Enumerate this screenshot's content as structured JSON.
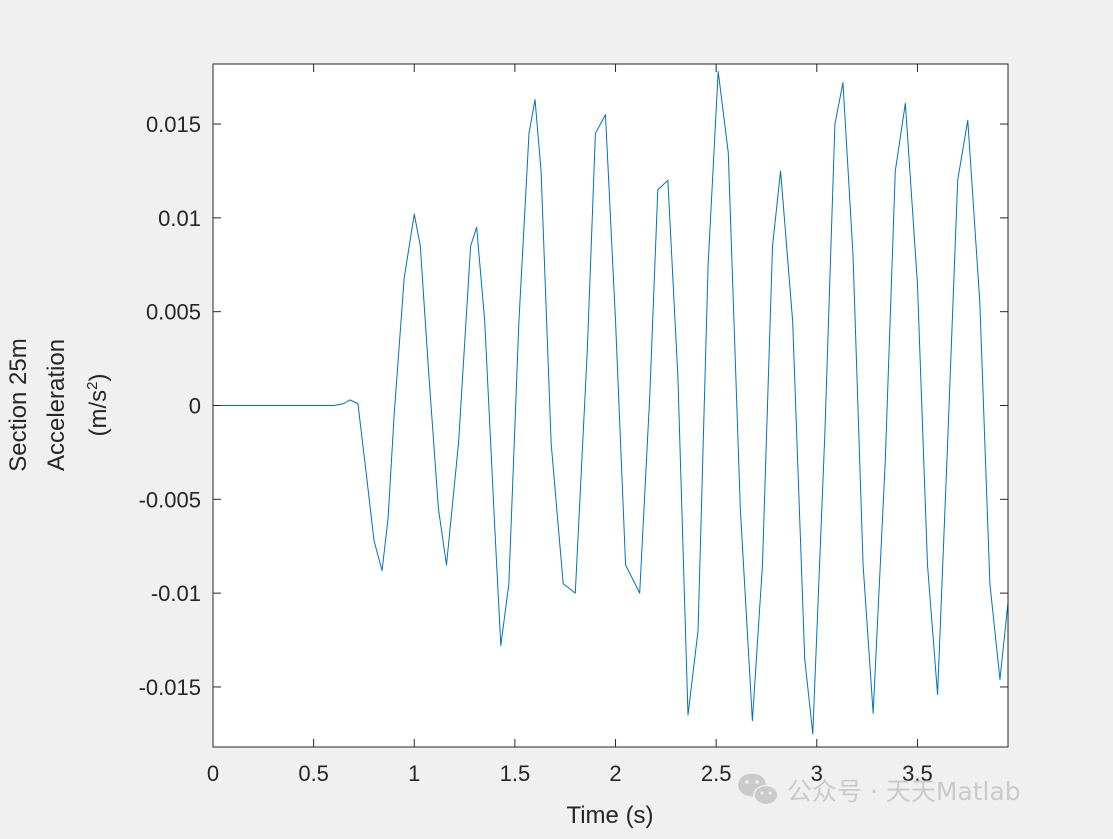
{
  "chart_data": {
    "type": "line",
    "title": "",
    "xlabel": "Time (s)",
    "ylabel_lines": [
      "Section 25m",
      "Acceleration"
    ],
    "ylabel_unit": {
      "prefix": "(m/s",
      "sup": "2",
      "suffix": ")"
    },
    "xlim": [
      0,
      3.95
    ],
    "ylim": [
      -0.0182,
      0.0182
    ],
    "x_ticks": [
      0,
      0.5,
      1,
      1.5,
      2,
      2.5,
      3,
      3.5
    ],
    "x_tick_labels": [
      "0",
      "0.5",
      "1",
      "1.5",
      "2",
      "2.5",
      "3",
      "3.5"
    ],
    "y_ticks": [
      0.015,
      0.01,
      0.005,
      0,
      -0.005,
      -0.01,
      -0.015
    ],
    "y_tick_labels": [
      "0.015",
      "0.01",
      "0.005",
      "0",
      "-0.005",
      "-0.01",
      "-0.015"
    ],
    "grid": false,
    "series": [
      {
        "color": "#0072bd",
        "x": [
          0,
          0.5,
          0.6,
          0.65,
          0.68,
          0.72,
          0.76,
          0.8,
          0.84,
          0.87,
          0.9,
          0.95,
          1.0,
          1.03,
          1.07,
          1.12,
          1.16,
          1.22,
          1.28,
          1.31,
          1.35,
          1.4,
          1.43,
          1.47,
          1.52,
          1.57,
          1.6,
          1.63,
          1.68,
          1.74,
          1.8,
          1.86,
          1.9,
          1.95,
          2.0,
          2.05,
          2.12,
          2.17,
          2.21,
          2.26,
          2.31,
          2.36,
          2.41,
          2.46,
          2.51,
          2.56,
          2.62,
          2.68,
          2.73,
          2.78,
          2.82,
          2.88,
          2.94,
          2.98,
          3.04,
          3.09,
          3.13,
          3.18,
          3.23,
          3.28,
          3.34,
          3.39,
          3.44,
          3.5,
          3.55,
          3.6,
          3.65,
          3.7,
          3.75,
          3.81,
          3.86,
          3.91,
          3.95
        ],
        "y": [
          0,
          0,
          0,
          0.0001,
          0.0003,
          0.0001,
          -0.0035,
          -0.0072,
          -0.0088,
          -0.006,
          -0.0005,
          0.0068,
          0.0102,
          0.0085,
          0.002,
          -0.0055,
          -0.0085,
          -0.002,
          0.0085,
          0.0095,
          0.0045,
          -0.0065,
          -0.0128,
          -0.0095,
          0.0045,
          0.0145,
          0.0163,
          0.0125,
          -0.002,
          -0.0095,
          -0.01,
          0.003,
          0.0145,
          0.0155,
          0.0045,
          -0.0085,
          -0.01,
          0.0005,
          0.0115,
          0.012,
          0.0015,
          -0.0165,
          -0.012,
          0.0075,
          0.0178,
          0.0135,
          -0.0055,
          -0.0168,
          -0.0085,
          0.0085,
          0.0125,
          0.0045,
          -0.0135,
          -0.0175,
          -0.0015,
          0.015,
          0.0172,
          0.008,
          -0.0085,
          -0.0164,
          -0.003,
          0.0125,
          0.0161,
          0.0065,
          -0.0085,
          -0.0154,
          -0.002,
          0.012,
          0.0152,
          0.0055,
          -0.0095,
          -0.0146,
          -0.0105
        ]
      }
    ]
  },
  "watermark": {
    "text": "公众号 · 天天Matlab",
    "icon": "wechat-icon"
  }
}
